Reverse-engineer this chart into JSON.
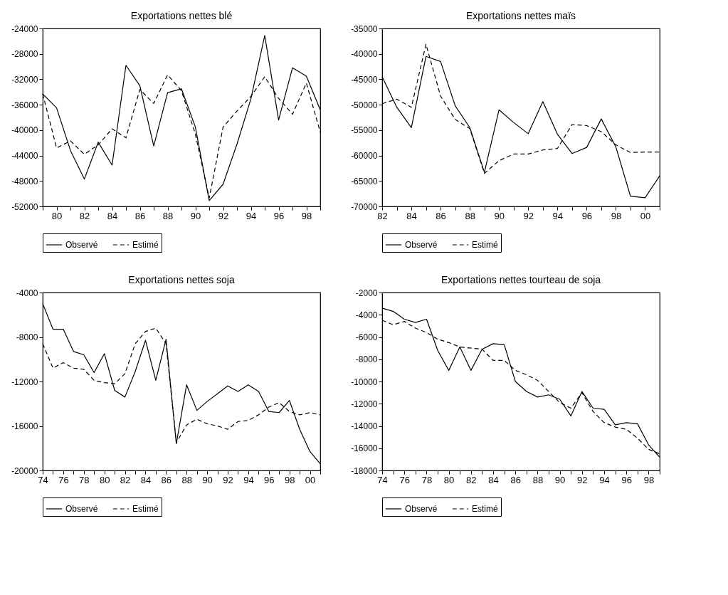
{
  "chart_data": [
    {
      "type": "line",
      "title": "Exportations nettes blé",
      "legend": "bottom",
      "grid": false,
      "x": [
        1979,
        1980,
        1981,
        1982,
        1983,
        1984,
        1985,
        1986,
        1987,
        1988,
        1989,
        1990,
        1991,
        1992,
        1993,
        1994,
        1995,
        1996,
        1997,
        1998,
        1999
      ],
      "xlim": [
        1979,
        1999
      ],
      "xticks": [
        {
          "value": 1979,
          "label": null
        },
        {
          "value": 1980,
          "label": "80"
        },
        {
          "value": 1981,
          "label": null
        },
        {
          "value": 1982,
          "label": "82"
        },
        {
          "value": 1983,
          "label": null
        },
        {
          "value": 1984,
          "label": "84"
        },
        {
          "value": 1985,
          "label": null
        },
        {
          "value": 1986,
          "label": "86"
        },
        {
          "value": 1987,
          "label": null
        },
        {
          "value": 1988,
          "label": "88"
        },
        {
          "value": 1989,
          "label": null
        },
        {
          "value": 1990,
          "label": "90"
        },
        {
          "value": 1991,
          "label": null
        },
        {
          "value": 1992,
          "label": "92"
        },
        {
          "value": 1993,
          "label": null
        },
        {
          "value": 1994,
          "label": "94"
        },
        {
          "value": 1995,
          "label": null
        },
        {
          "value": 1996,
          "label": "96"
        },
        {
          "value": 1997,
          "label": null
        },
        {
          "value": 1998,
          "label": "98"
        },
        {
          "value": 1999,
          "label": null
        }
      ],
      "ylim": [
        -52000,
        -24000
      ],
      "yticks": [
        -52000,
        -48000,
        -44000,
        -40000,
        -36000,
        -32000,
        -28000,
        -24000
      ],
      "series": [
        {
          "name": "Observé",
          "color": "#000000",
          "line_style": "solid",
          "values": [
            -34300,
            -36500,
            -43200,
            -47700,
            -41900,
            -45500,
            -29800,
            -33000,
            -42500,
            -34100,
            -33500,
            -39500,
            -51100,
            -48500,
            -42200,
            -35100,
            -25100,
            -38400,
            -30200,
            -31500,
            -36800
          ]
        },
        {
          "name": "Estimé",
          "color": "#000000",
          "line_style": "dashed",
          "values": [
            -34300,
            -42800,
            -41700,
            -43800,
            -42300,
            -39800,
            -41200,
            -33600,
            -35800,
            -31300,
            -33800,
            -40600,
            -50700,
            -39500,
            -37000,
            -34700,
            -31600,
            -35000,
            -37500,
            -32600,
            -40300
          ]
        }
      ]
    },
    {
      "type": "line",
      "title": "Exportations nettes maïs",
      "legend": "bottom",
      "grid": false,
      "x": [
        1982,
        1983,
        1984,
        1985,
        1986,
        1987,
        1988,
        1989,
        1990,
        1991,
        1992,
        1993,
        1994,
        1995,
        1996,
        1997,
        1998,
        1999,
        2000,
        2001
      ],
      "xlim": [
        1982,
        2001
      ],
      "xticks": [
        {
          "value": 1982,
          "label": "82"
        },
        {
          "value": 1983,
          "label": null
        },
        {
          "value": 1984,
          "label": "84"
        },
        {
          "value": 1985,
          "label": null
        },
        {
          "value": 1986,
          "label": "86"
        },
        {
          "value": 1987,
          "label": null
        },
        {
          "value": 1988,
          "label": "88"
        },
        {
          "value": 1989,
          "label": null
        },
        {
          "value": 1990,
          "label": "90"
        },
        {
          "value": 1991,
          "label": null
        },
        {
          "value": 1992,
          "label": "92"
        },
        {
          "value": 1993,
          "label": null
        },
        {
          "value": 1994,
          "label": "94"
        },
        {
          "value": 1995,
          "label": null
        },
        {
          "value": 1996,
          "label": "96"
        },
        {
          "value": 1997,
          "label": null
        },
        {
          "value": 1998,
          "label": "98"
        },
        {
          "value": 1999,
          "label": null
        },
        {
          "value": 2000,
          "label": "00"
        },
        {
          "value": 2001,
          "label": null
        }
      ],
      "ylim": [
        -70000,
        -35000
      ],
      "yticks": [
        -70000,
        -65000,
        -60000,
        -55000,
        -50000,
        -45000,
        -40000,
        -35000
      ],
      "series": [
        {
          "name": "Observé",
          "color": "#000000",
          "line_style": "solid",
          "values": [
            -44500,
            -50500,
            -54500,
            -40500,
            -41500,
            -50200,
            -54500,
            -63300,
            -51000,
            -53500,
            -55700,
            -49400,
            -55800,
            -59600,
            -58400,
            -52800,
            -58300,
            -68000,
            -68300,
            -64000
          ]
        },
        {
          "name": "Estimé",
          "color": "#000000",
          "line_style": "dashed",
          "values": [
            -49800,
            -48900,
            -50500,
            -38100,
            -48300,
            -52900,
            -54700,
            -63500,
            -61000,
            -59700,
            -59700,
            -58900,
            -58600,
            -53900,
            -54100,
            -55300,
            -57900,
            -59400,
            -59300,
            -59300
          ]
        }
      ]
    },
    {
      "type": "line",
      "title": "Exportations nettes soja",
      "legend": "bottom",
      "grid": false,
      "x": [
        1974,
        1975,
        1976,
        1977,
        1978,
        1979,
        1980,
        1981,
        1982,
        1983,
        1984,
        1985,
        1986,
        1987,
        1988,
        1989,
        1990,
        1991,
        1992,
        1993,
        1994,
        1995,
        1996,
        1997,
        1998,
        1999,
        2000,
        2001
      ],
      "xlim": [
        1974,
        2001
      ],
      "xticks": [
        {
          "value": 1974,
          "label": "74"
        },
        {
          "value": 1975,
          "label": null
        },
        {
          "value": 1976,
          "label": "76"
        },
        {
          "value": 1977,
          "label": null
        },
        {
          "value": 1978,
          "label": "78"
        },
        {
          "value": 1979,
          "label": null
        },
        {
          "value": 1980,
          "label": "80"
        },
        {
          "value": 1981,
          "label": null
        },
        {
          "value": 1982,
          "label": "82"
        },
        {
          "value": 1983,
          "label": null
        },
        {
          "value": 1984,
          "label": "84"
        },
        {
          "value": 1985,
          "label": null
        },
        {
          "value": 1986,
          "label": "86"
        },
        {
          "value": 1987,
          "label": null
        },
        {
          "value": 1988,
          "label": "88"
        },
        {
          "value": 1989,
          "label": null
        },
        {
          "value": 1990,
          "label": "90"
        },
        {
          "value": 1991,
          "label": null
        },
        {
          "value": 1992,
          "label": "92"
        },
        {
          "value": 1993,
          "label": null
        },
        {
          "value": 1994,
          "label": "94"
        },
        {
          "value": 1995,
          "label": null
        },
        {
          "value": 1996,
          "label": "96"
        },
        {
          "value": 1997,
          "label": null
        },
        {
          "value": 1998,
          "label": "98"
        },
        {
          "value": 1999,
          "label": null
        },
        {
          "value": 2000,
          "label": "00"
        },
        {
          "value": 2001,
          "label": null
        }
      ],
      "ylim": [
        -20000,
        -4000
      ],
      "yticks": [
        -20000,
        -16000,
        -12000,
        -8000,
        -4000
      ],
      "series": [
        {
          "name": "Observé",
          "color": "#000000",
          "line_style": "solid",
          "values": [
            -5000,
            -7300,
            -7300,
            -9300,
            -9600,
            -11200,
            -9500,
            -12800,
            -13400,
            -11100,
            -8300,
            -11900,
            -8200,
            -17600,
            -12300,
            -14600,
            -13800,
            -13100,
            -12400,
            -12900,
            -12300,
            -12900,
            -14700,
            -14800,
            -13700,
            -16300,
            -18300,
            -19400
          ]
        },
        {
          "name": "Estimé",
          "color": "#000000",
          "line_style": "dashed",
          "values": [
            -8600,
            -10800,
            -10300,
            -10800,
            -10900,
            -11900,
            -12100,
            -12200,
            -11300,
            -8600,
            -7500,
            -7200,
            -8600,
            -17500,
            -15900,
            -15400,
            -15800,
            -16000,
            -16300,
            -15600,
            -15500,
            -15000,
            -14300,
            -13900,
            -14700,
            -15000,
            -14800,
            -15000
          ]
        }
      ]
    },
    {
      "type": "line",
      "title": "Exportations nettes tourteau de soja",
      "legend": "bottom",
      "grid": false,
      "x": [
        1974,
        1975,
        1976,
        1977,
        1978,
        1979,
        1980,
        1981,
        1982,
        1983,
        1984,
        1985,
        1986,
        1987,
        1988,
        1989,
        1990,
        1991,
        1992,
        1993,
        1994,
        1995,
        1996,
        1997,
        1998,
        1999
      ],
      "xlim": [
        1974,
        1999
      ],
      "xticks": [
        {
          "value": 1974,
          "label": "74"
        },
        {
          "value": 1975,
          "label": null
        },
        {
          "value": 1976,
          "label": "76"
        },
        {
          "value": 1977,
          "label": null
        },
        {
          "value": 1978,
          "label": "78"
        },
        {
          "value": 1979,
          "label": null
        },
        {
          "value": 1980,
          "label": "80"
        },
        {
          "value": 1981,
          "label": null
        },
        {
          "value": 1982,
          "label": "82"
        },
        {
          "value": 1983,
          "label": null
        },
        {
          "value": 1984,
          "label": "84"
        },
        {
          "value": 1985,
          "label": null
        },
        {
          "value": 1986,
          "label": "86"
        },
        {
          "value": 1987,
          "label": null
        },
        {
          "value": 1988,
          "label": "88"
        },
        {
          "value": 1989,
          "label": null
        },
        {
          "value": 1990,
          "label": "90"
        },
        {
          "value": 1991,
          "label": null
        },
        {
          "value": 1992,
          "label": "92"
        },
        {
          "value": 1993,
          "label": null
        },
        {
          "value": 1994,
          "label": "94"
        },
        {
          "value": 1995,
          "label": null
        },
        {
          "value": 1996,
          "label": "96"
        },
        {
          "value": 1997,
          "label": null
        },
        {
          "value": 1998,
          "label": "98"
        },
        {
          "value": 1999,
          "label": null
        }
      ],
      "ylim": [
        -18000,
        -2000
      ],
      "yticks": [
        -18000,
        -16000,
        -14000,
        -12000,
        -10000,
        -8000,
        -6000,
        -4000,
        -2000
      ],
      "series": [
        {
          "name": "Observé",
          "color": "#000000",
          "line_style": "solid",
          "values": [
            -3400,
            -3700,
            -4400,
            -4700,
            -4400,
            -7200,
            -9000,
            -6900,
            -9000,
            -7100,
            -6600,
            -6700,
            -10000,
            -10900,
            -11400,
            -11200,
            -11600,
            -13100,
            -10900,
            -12400,
            -12500,
            -13900,
            -13700,
            -13800,
            -15700,
            -16800
          ]
        },
        {
          "name": "Estimé",
          "color": "#000000",
          "line_style": "dashed",
          "values": [
            -4500,
            -4900,
            -4600,
            -5200,
            -5600,
            -6200,
            -6500,
            -6900,
            -7000,
            -7100,
            -8100,
            -8100,
            -9000,
            -9400,
            -9900,
            -10900,
            -11900,
            -12400,
            -11000,
            -12700,
            -13700,
            -14100,
            -14300,
            -15100,
            -16100,
            -16500
          ]
        }
      ]
    }
  ]
}
